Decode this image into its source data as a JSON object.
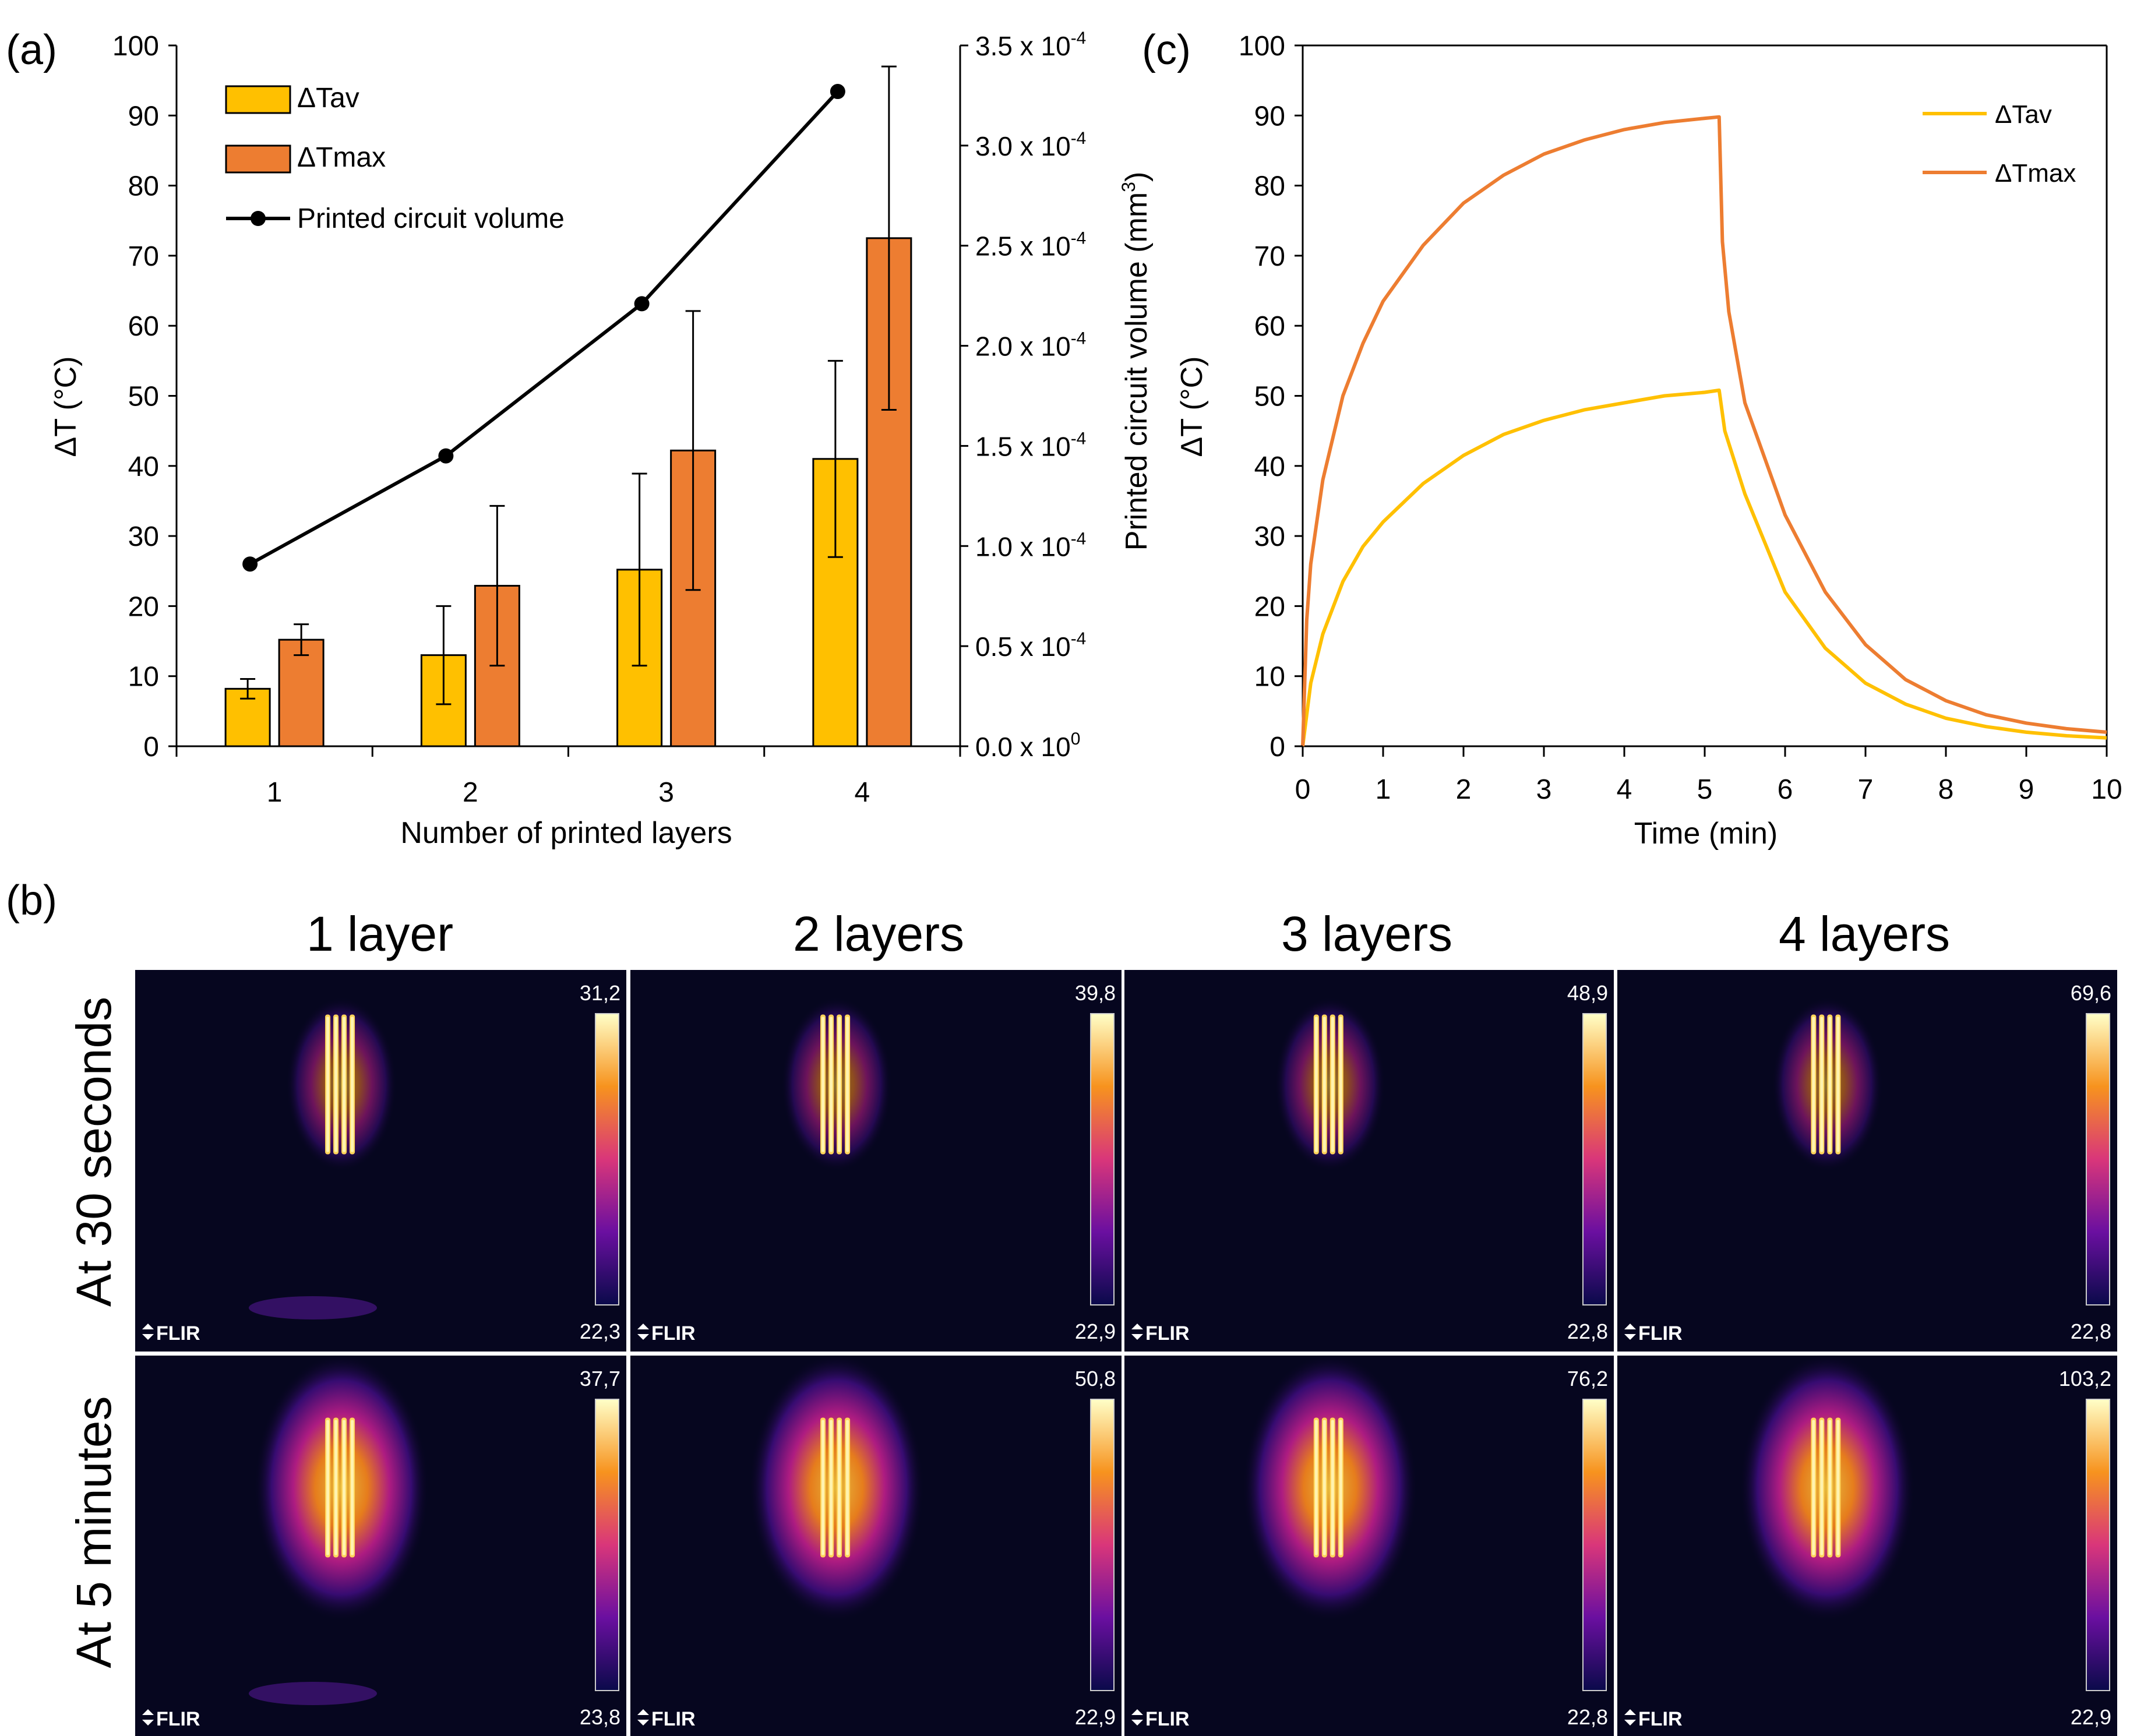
{
  "panel_labels": {
    "a": "(a)",
    "b": "(b)",
    "c": "(c)"
  },
  "colors": {
    "tav": "#FFC000",
    "tmax": "#ED7D31",
    "volume_line": "#000000",
    "thermal_bg": "#06061f"
  },
  "chart_data": [
    {
      "id": "a",
      "type": "bar",
      "xlabel": "Number of printed layers",
      "ylabel": "ΔT (°C)",
      "y2label": "Printed circuit volume (mm",
      "y2label_sup": "3",
      "y2label_end": ")",
      "categories": [
        "1",
        "2",
        "3",
        "4"
      ],
      "ylim": [
        0,
        100
      ],
      "yticks": [
        0,
        10,
        20,
        30,
        40,
        50,
        60,
        70,
        80,
        90,
        100
      ],
      "y2lim": [
        0,
        0.00035
      ],
      "y2ticks": [
        {
          "value": 0,
          "mantissa": "0.0 x 10",
          "exp": "0"
        },
        {
          "value": 5e-05,
          "mantissa": "0.5 x 10",
          "exp": "-4"
        },
        {
          "value": 0.0001,
          "mantissa": "1.0 x 10",
          "exp": "-4"
        },
        {
          "value": 0.00015,
          "mantissa": "1.5 x 10",
          "exp": "-4"
        },
        {
          "value": 0.0002,
          "mantissa": "2.0 x 10",
          "exp": "-4"
        },
        {
          "value": 0.00025,
          "mantissa": "2.5 x 10",
          "exp": "-4"
        },
        {
          "value": 0.0003,
          "mantissa": "3.0 x 10",
          "exp": "-4"
        },
        {
          "value": 0.00035,
          "mantissa": "3.5 x 10",
          "exp": "-4"
        }
      ],
      "legend_position": "top-left",
      "series": [
        {
          "name": "ΔTav",
          "kind": "bar",
          "color": "#FFC000",
          "values": [
            8.2,
            13.0,
            25.2,
            41.0
          ],
          "errors": [
            1.4,
            7.0,
            13.7,
            14.0
          ]
        },
        {
          "name": "ΔTmax",
          "kind": "bar",
          "color": "#ED7D31",
          "values": [
            15.2,
            22.9,
            42.2,
            72.5
          ],
          "errors": [
            2.2,
            11.4,
            19.9,
            24.5
          ]
        },
        {
          "name": "Printed circuit volume",
          "kind": "line",
          "axis": "y2",
          "color": "#000000",
          "values": [
            9.1e-05,
            0.000145,
            0.000221,
            0.000327
          ]
        }
      ]
    },
    {
      "id": "c",
      "type": "line",
      "xlabel": "Time (min)",
      "ylabel": "ΔT (°C)",
      "xlim": [
        0,
        10
      ],
      "xticks": [
        0,
        1,
        2,
        3,
        4,
        5,
        6,
        7,
        8,
        9,
        10
      ],
      "ylim": [
        0,
        100
      ],
      "yticks": [
        0,
        10,
        20,
        30,
        40,
        50,
        60,
        70,
        80,
        90,
        100
      ],
      "legend_position": "top-right",
      "series": [
        {
          "name": "ΔTav",
          "color": "#FFC000",
          "x": [
            0,
            0.1,
            0.25,
            0.5,
            0.75,
            1,
            1.5,
            2,
            2.5,
            3,
            3.5,
            4,
            4.5,
            5,
            5.18,
            5.25,
            5.5,
            6,
            6.5,
            7,
            7.5,
            8,
            8.5,
            9,
            9.5,
            10
          ],
          "y": [
            0,
            9,
            16,
            23.5,
            28.5,
            32,
            37.5,
            41.5,
            44.5,
            46.5,
            48,
            49,
            50,
            50.5,
            50.8,
            45,
            36,
            22,
            14,
            9,
            6,
            4,
            2.8,
            2,
            1.5,
            1.2
          ]
        },
        {
          "name": "ΔTmax",
          "color": "#ED7D31",
          "x": [
            0,
            0.05,
            0.1,
            0.25,
            0.5,
            0.75,
            1,
            1.5,
            2,
            2.5,
            3,
            3.5,
            4,
            4.5,
            5,
            5.18,
            5.22,
            5.3,
            5.5,
            6,
            6.5,
            7,
            7.5,
            8,
            8.5,
            9,
            9.5,
            10
          ],
          "y": [
            0,
            18,
            26,
            38,
            50,
            57.5,
            63.5,
            71.5,
            77.5,
            81.5,
            84.5,
            86.5,
            88,
            89,
            89.6,
            89.8,
            72,
            62,
            49,
            33,
            22,
            14.5,
            9.5,
            6.5,
            4.5,
            3.3,
            2.5,
            2
          ]
        }
      ]
    }
  ],
  "thermal": {
    "column_titles": [
      "1 layer",
      "2 layers",
      "3 layers",
      "4 layers"
    ],
    "row_titles": [
      "At 30 seconds",
      "At 5 minutes"
    ],
    "brand": "FLIR",
    "max_labels": [
      [
        "31,2",
        "39,8",
        "48,9",
        "69,6"
      ],
      [
        "37,7",
        "50,8",
        "76,2",
        "103,2"
      ]
    ],
    "min_labels": [
      [
        "22,3",
        "22,9",
        "22,8",
        "22,8"
      ],
      [
        "23,8",
        "22,9",
        "22,8",
        "22,9"
      ]
    ]
  }
}
